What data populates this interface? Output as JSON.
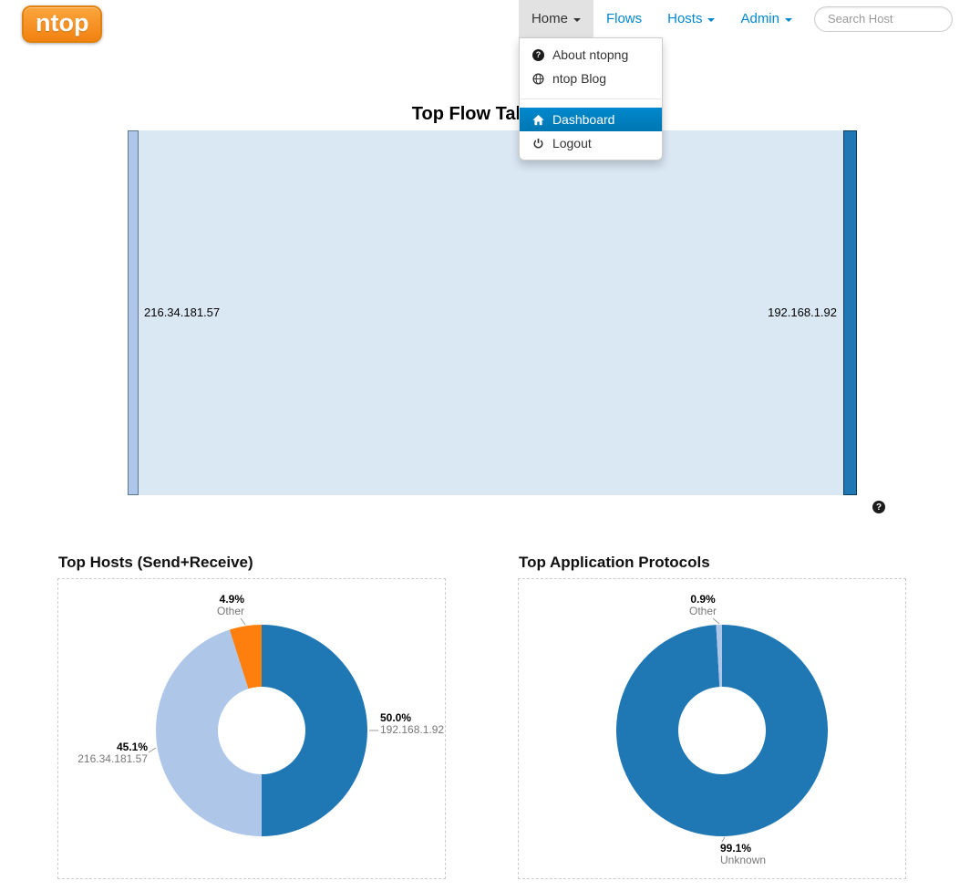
{
  "navbar": {
    "brand": "ntop",
    "home_label": "Home",
    "flows_label": "Flows",
    "hosts_label": "Hosts",
    "admin_label": "Admin",
    "search_placeholder": "Search Host"
  },
  "home_menu": {
    "about_label": "About ntopng",
    "blog_label": "ntop Blog",
    "dashboard_label": "Dashboard",
    "logout_label": "Logout"
  },
  "icons": {
    "question_glyph": "?"
  },
  "colors": {
    "accent_blue": "#0088cc",
    "menu_selected_bg": "#0081c2",
    "brand_orange": "#f58220",
    "donut_blue": "#1f77b4",
    "donut_light_blue": "#aec7e8",
    "donut_orange": "#ff7f0e"
  },
  "chart_data": [
    {
      "type": "sankey",
      "title": "Top Flow Talkers",
      "nodes": [
        {
          "name": "216.34.181.57",
          "color": "#aec7e8"
        },
        {
          "name": "192.168.1.92",
          "color": "#1f77b4"
        }
      ],
      "links": [
        {
          "source": "216.34.181.57",
          "target": "192.168.1.92"
        }
      ],
      "link_color": "#dae8f4"
    },
    {
      "type": "pie",
      "title": "Top Hosts (Send+Receive)",
      "slices": [
        {
          "name": "192.168.1.92",
          "pct": 50.0,
          "pct_label": "50.0%",
          "color": "#1f77b4"
        },
        {
          "name": "216.34.181.57",
          "pct": 45.1,
          "pct_label": "45.1%",
          "color": "#aec7e8"
        },
        {
          "name": "Other",
          "pct": 4.9,
          "pct_label": "4.9%",
          "color": "#ff7f0e"
        }
      ]
    },
    {
      "type": "pie",
      "title": "Top Application Protocols",
      "slices": [
        {
          "name": "Unknown",
          "pct": 99.1,
          "pct_label": "99.1%",
          "color": "#1f77b4"
        },
        {
          "name": "Other",
          "pct": 0.9,
          "pct_label": "0.9%",
          "color": "#aec7e8"
        }
      ]
    }
  ]
}
